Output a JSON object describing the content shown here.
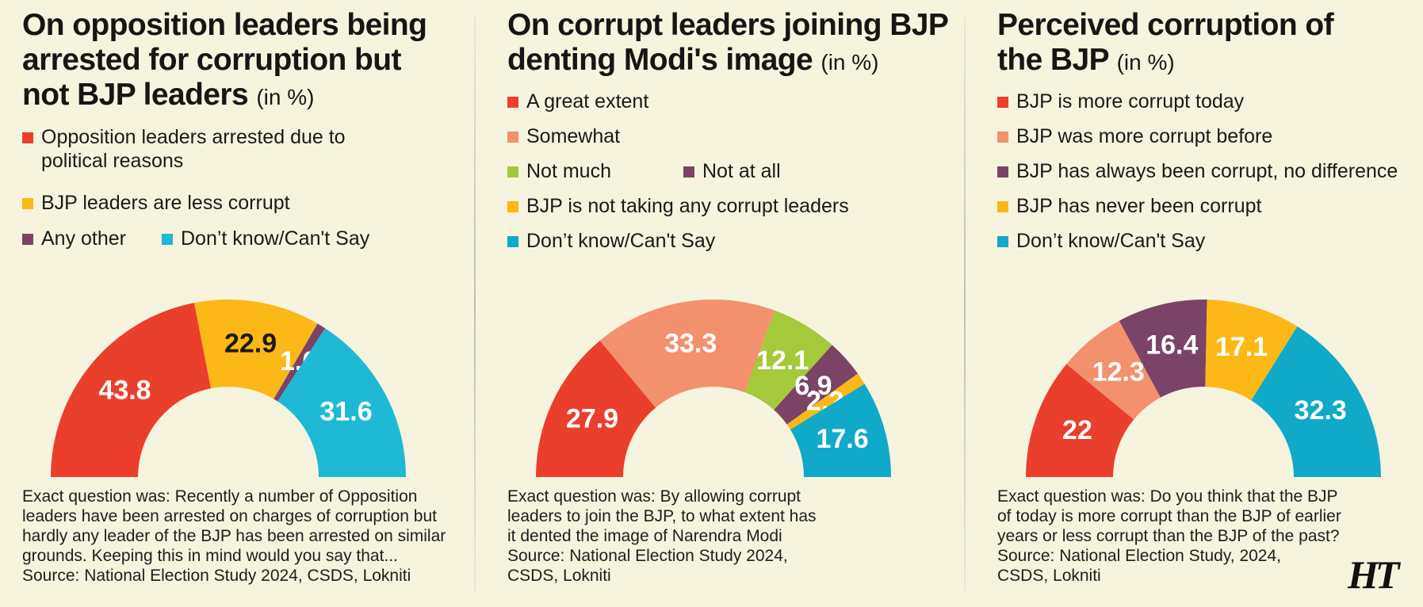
{
  "chart_data": [
    {
      "type": "pie",
      "title_lines": [
        "On opposition leaders being",
        "arrested for corruption but",
        "not BJP leaders"
      ],
      "unit": "(in %)",
      "legend": [
        {
          "label_lines": [
            "Opposition leaders arrested due to",
            "political reasons"
          ],
          "color": "#ea3f2d"
        },
        {
          "label_lines": [
            "BJP leaders are less corrupt"
          ],
          "color": "#fbb817"
        },
        {
          "label_lines": [
            "Any other"
          ],
          "color": "#7b4466"
        },
        {
          "label_lines": [
            "Don’t know/Can't Say"
          ],
          "color": "#1fb9d5"
        }
      ],
      "slices": [
        {
          "value": 43.8,
          "label": "43.8",
          "color": "#ea3f2d",
          "label_color": "#ffffff"
        },
        {
          "value": 22.9,
          "label": "22.9",
          "color": "#fbb817",
          "label_color": "#1a1a1a"
        },
        {
          "value": 1.6,
          "label": "1.6",
          "color": "#7b4466",
          "label_color": "#ffffff"
        },
        {
          "value": 31.6,
          "label": "31.6",
          "color": "#1fb9d5",
          "label_color": "#ffffff"
        }
      ],
      "note_lines": [
        "Exact question was: Recently a number of Opposition",
        "leaders have been arrested on charges of corruption but",
        "hardly any leader of the BJP has been arrested on similar",
        "grounds. Keeping this in mind would you say that...",
        "Source: National Election Study 2024, CSDS, Lokniti"
      ]
    },
    {
      "type": "pie",
      "title_lines": [
        "On corrupt leaders joining BJP",
        "denting Modi's image"
      ],
      "unit": "(in %)",
      "legend": [
        {
          "label_lines": [
            "A great extent"
          ],
          "color": "#ea3f2d"
        },
        {
          "label_lines": [
            "Somewhat"
          ],
          "color": "#f3906e"
        },
        {
          "label_lines": [
            "Not much"
          ],
          "color": "#a4c93b"
        },
        {
          "label_lines": [
            "Not at all"
          ],
          "color": "#7b4466"
        },
        {
          "label_lines": [
            "BJP is not taking any corrupt leaders"
          ],
          "color": "#fbb817"
        },
        {
          "label_lines": [
            "Don’t know/Can't Say"
          ],
          "color": "#10a9c8"
        }
      ],
      "slices": [
        {
          "value": 27.9,
          "label": "27.9",
          "color": "#ea3f2d",
          "label_color": "#ffffff"
        },
        {
          "value": 33.3,
          "label": "33.3",
          "color": "#f3906e",
          "label_color": "#ffffff"
        },
        {
          "value": 12.1,
          "label": "12.1",
          "color": "#a4c93b",
          "label_color": "#ffffff"
        },
        {
          "value": 6.9,
          "label": "6.9",
          "color": "#7b4466",
          "label_color": "#ffffff"
        },
        {
          "value": 2.2,
          "label": "2.2",
          "color": "#fbb817",
          "label_color": "#ffffff"
        },
        {
          "value": 17.6,
          "label": "17.6",
          "color": "#10a9c8",
          "label_color": "#ffffff"
        }
      ],
      "note_lines": [
        "Exact question was: By allowing corrupt",
        "leaders to join the BJP, to what extent has",
        "it dented the image of Narendra Modi",
        "Source: National Election Study 2024,",
        "CSDS, Lokniti"
      ]
    },
    {
      "type": "pie",
      "title_lines": [
        "Perceived corruption of",
        "the BJP"
      ],
      "unit": "(in %)",
      "legend": [
        {
          "label_lines": [
            "BJP is more corrupt today"
          ],
          "color": "#ea3f2d"
        },
        {
          "label_lines": [
            "BJP was more corrupt before"
          ],
          "color": "#f3906e"
        },
        {
          "label_lines": [
            "BJP has always been corrupt, no difference"
          ],
          "color": "#7b4466"
        },
        {
          "label_lines": [
            "BJP has never been corrupt"
          ],
          "color": "#fbb817"
        },
        {
          "label_lines": [
            "Don’t know/Can't Say"
          ],
          "color": "#10a9c8"
        }
      ],
      "slices": [
        {
          "value": 22,
          "label": "22",
          "color": "#ea3f2d",
          "label_color": "#ffffff"
        },
        {
          "value": 12.3,
          "label": "12.3",
          "color": "#f3906e",
          "label_color": "#ffffff"
        },
        {
          "value": 16.4,
          "label": "16.4",
          "color": "#7b4466",
          "label_color": "#ffffff"
        },
        {
          "value": 17.1,
          "label": "17.1",
          "color": "#fbb817",
          "label_color": "#ffffff"
        },
        {
          "value": 32.3,
          "label": "32.3",
          "color": "#10a9c8",
          "label_color": "#ffffff"
        }
      ],
      "note_lines": [
        "Exact question was: Do you think that the BJP",
        "of today is more corrupt than the BJP of earlier",
        "years or less corrupt than the BJP of the past?",
        "Source: National Election Study, 2024,",
        "CSDS, Lokniti"
      ]
    }
  ],
  "brand": {
    "logo_text": "HT"
  }
}
